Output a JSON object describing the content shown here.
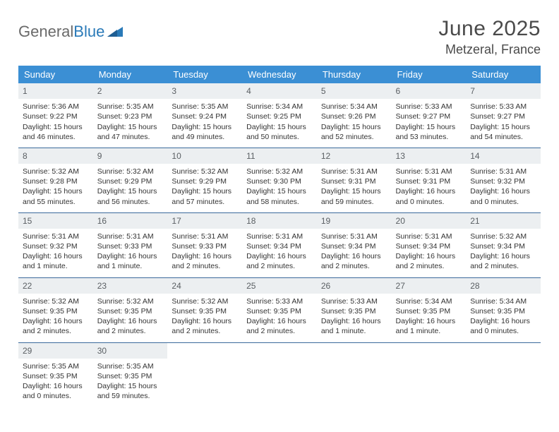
{
  "brand": {
    "part1": "General",
    "part2": "Blue"
  },
  "title": "June 2025",
  "location": "Metzeral, France",
  "colors": {
    "header_bg": "#3b8fd4",
    "header_fg": "#ffffff",
    "daynum_bg": "#eceff1",
    "daynum_fg": "#5a5f63",
    "row_border": "#3b6a9b",
    "brand_gray": "#6a6a6a",
    "brand_blue": "#2a7ab8"
  },
  "dow": [
    "Sunday",
    "Monday",
    "Tuesday",
    "Wednesday",
    "Thursday",
    "Friday",
    "Saturday"
  ],
  "weeks": [
    [
      {
        "n": "1",
        "sr": "5:36 AM",
        "ss": "9:22 PM",
        "dl": "15 hours and 46 minutes."
      },
      {
        "n": "2",
        "sr": "5:35 AM",
        "ss": "9:23 PM",
        "dl": "15 hours and 47 minutes."
      },
      {
        "n": "3",
        "sr": "5:35 AM",
        "ss": "9:24 PM",
        "dl": "15 hours and 49 minutes."
      },
      {
        "n": "4",
        "sr": "5:34 AM",
        "ss": "9:25 PM",
        "dl": "15 hours and 50 minutes."
      },
      {
        "n": "5",
        "sr": "5:34 AM",
        "ss": "9:26 PM",
        "dl": "15 hours and 52 minutes."
      },
      {
        "n": "6",
        "sr": "5:33 AM",
        "ss": "9:27 PM",
        "dl": "15 hours and 53 minutes."
      },
      {
        "n": "7",
        "sr": "5:33 AM",
        "ss": "9:27 PM",
        "dl": "15 hours and 54 minutes."
      }
    ],
    [
      {
        "n": "8",
        "sr": "5:32 AM",
        "ss": "9:28 PM",
        "dl": "15 hours and 55 minutes."
      },
      {
        "n": "9",
        "sr": "5:32 AM",
        "ss": "9:29 PM",
        "dl": "15 hours and 56 minutes."
      },
      {
        "n": "10",
        "sr": "5:32 AM",
        "ss": "9:29 PM",
        "dl": "15 hours and 57 minutes."
      },
      {
        "n": "11",
        "sr": "5:32 AM",
        "ss": "9:30 PM",
        "dl": "15 hours and 58 minutes."
      },
      {
        "n": "12",
        "sr": "5:31 AM",
        "ss": "9:31 PM",
        "dl": "15 hours and 59 minutes."
      },
      {
        "n": "13",
        "sr": "5:31 AM",
        "ss": "9:31 PM",
        "dl": "16 hours and 0 minutes."
      },
      {
        "n": "14",
        "sr": "5:31 AM",
        "ss": "9:32 PM",
        "dl": "16 hours and 0 minutes."
      }
    ],
    [
      {
        "n": "15",
        "sr": "5:31 AM",
        "ss": "9:32 PM",
        "dl": "16 hours and 1 minute."
      },
      {
        "n": "16",
        "sr": "5:31 AM",
        "ss": "9:33 PM",
        "dl": "16 hours and 1 minute."
      },
      {
        "n": "17",
        "sr": "5:31 AM",
        "ss": "9:33 PM",
        "dl": "16 hours and 2 minutes."
      },
      {
        "n": "18",
        "sr": "5:31 AM",
        "ss": "9:34 PM",
        "dl": "16 hours and 2 minutes."
      },
      {
        "n": "19",
        "sr": "5:31 AM",
        "ss": "9:34 PM",
        "dl": "16 hours and 2 minutes."
      },
      {
        "n": "20",
        "sr": "5:31 AM",
        "ss": "9:34 PM",
        "dl": "16 hours and 2 minutes."
      },
      {
        "n": "21",
        "sr": "5:32 AM",
        "ss": "9:34 PM",
        "dl": "16 hours and 2 minutes."
      }
    ],
    [
      {
        "n": "22",
        "sr": "5:32 AM",
        "ss": "9:35 PM",
        "dl": "16 hours and 2 minutes."
      },
      {
        "n": "23",
        "sr": "5:32 AM",
        "ss": "9:35 PM",
        "dl": "16 hours and 2 minutes."
      },
      {
        "n": "24",
        "sr": "5:32 AM",
        "ss": "9:35 PM",
        "dl": "16 hours and 2 minutes."
      },
      {
        "n": "25",
        "sr": "5:33 AM",
        "ss": "9:35 PM",
        "dl": "16 hours and 2 minutes."
      },
      {
        "n": "26",
        "sr": "5:33 AM",
        "ss": "9:35 PM",
        "dl": "16 hours and 1 minute."
      },
      {
        "n": "27",
        "sr": "5:34 AM",
        "ss": "9:35 PM",
        "dl": "16 hours and 1 minute."
      },
      {
        "n": "28",
        "sr": "5:34 AM",
        "ss": "9:35 PM",
        "dl": "16 hours and 0 minutes."
      }
    ],
    [
      {
        "n": "29",
        "sr": "5:35 AM",
        "ss": "9:35 PM",
        "dl": "16 hours and 0 minutes."
      },
      {
        "n": "30",
        "sr": "5:35 AM",
        "ss": "9:35 PM",
        "dl": "15 hours and 59 minutes."
      },
      null,
      null,
      null,
      null,
      null
    ]
  ],
  "labels": {
    "sunrise": "Sunrise: ",
    "sunset": "Sunset: ",
    "daylight": "Daylight: "
  }
}
